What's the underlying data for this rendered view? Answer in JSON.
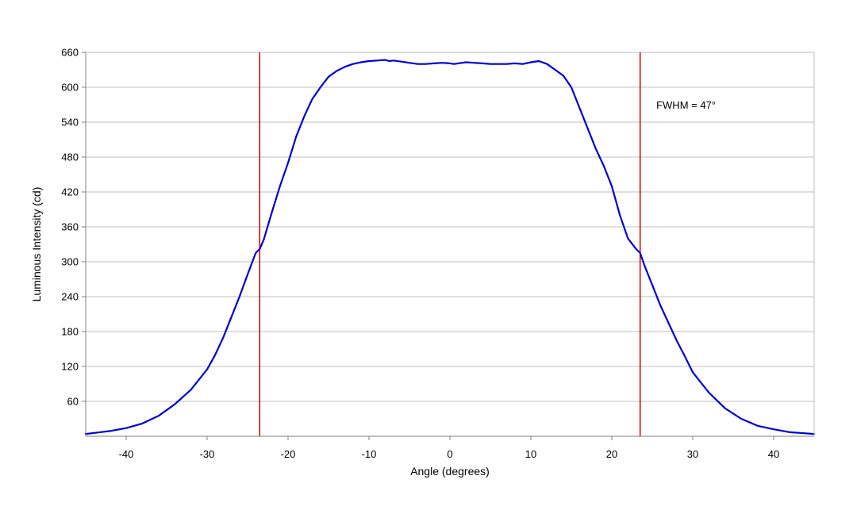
{
  "chart_data": {
    "type": "line",
    "title": "",
    "xlabel": "Angle (degrees)",
    "ylabel": "Luminous Intensity (cd)",
    "xlim": [
      -45,
      45
    ],
    "ylim": [
      0,
      660
    ],
    "x_ticks": [
      -40,
      -30,
      -20,
      -10,
      0,
      10,
      20,
      30,
      40
    ],
    "y_ticks": [
      60,
      120,
      180,
      240,
      300,
      360,
      420,
      480,
      540,
      600,
      660
    ],
    "x_tick_labels": [
      "-40",
      "-30",
      "-20",
      "-10",
      "0",
      "10",
      "20",
      "30",
      "40"
    ],
    "y_tick_labels": [
      "60",
      "120",
      "180",
      "240",
      "300",
      "360",
      "420",
      "480",
      "540",
      "600",
      "660"
    ],
    "grid": "horizontal",
    "series": [
      {
        "color": "#0000cc",
        "x": [
          -45,
          -42,
          -40,
          -38,
          -36,
          -34,
          -32,
          -30,
          -29,
          -28,
          -27,
          -26,
          -25,
          -24,
          -23.5,
          -23,
          -22,
          -21,
          -20,
          -19,
          -18,
          -17,
          -16,
          -15,
          -14,
          -13,
          -12,
          -11,
          -10,
          -9,
          -8,
          -7.5,
          -7,
          -6,
          -5,
          -4,
          -3,
          -2,
          -1,
          0,
          0.5,
          1,
          2,
          3,
          4,
          5,
          6,
          7,
          8,
          9,
          10,
          11,
          12,
          13,
          14,
          15,
          16,
          17,
          18,
          19,
          20,
          21,
          22,
          23,
          23.5,
          24,
          25,
          26,
          27,
          28,
          29,
          30,
          32,
          34,
          36,
          38,
          40,
          42,
          45
        ],
        "y": [
          4,
          9,
          14,
          22,
          35,
          55,
          80,
          115,
          140,
          170,
          205,
          240,
          278,
          315,
          322,
          338,
          385,
          430,
          470,
          515,
          550,
          580,
          600,
          618,
          628,
          635,
          640,
          643,
          645,
          646,
          647,
          645,
          646,
          644,
          642,
          640,
          640,
          641,
          642,
          641,
          640,
          641,
          643,
          642,
          641,
          640,
          640,
          640,
          641,
          640,
          643,
          645,
          640,
          630,
          620,
          600,
          565,
          530,
          495,
          465,
          430,
          380,
          340,
          322,
          315,
          295,
          260,
          225,
          195,
          165,
          138,
          110,
          75,
          48,
          30,
          18,
          12,
          7,
          4
        ]
      }
    ],
    "vertical_lines": [
      {
        "x": -23.5,
        "color": "#cc0000"
      },
      {
        "x": 23.5,
        "color": "#cc0000"
      }
    ],
    "annotations": [
      {
        "text": "FWHM = 47°",
        "x": 25.5,
        "y": 570
      }
    ],
    "colors": {
      "curve": "#0000cc",
      "fwhm_lines": "#cc0000",
      "grid": "#bfbfbf",
      "axes": "#808080"
    }
  }
}
